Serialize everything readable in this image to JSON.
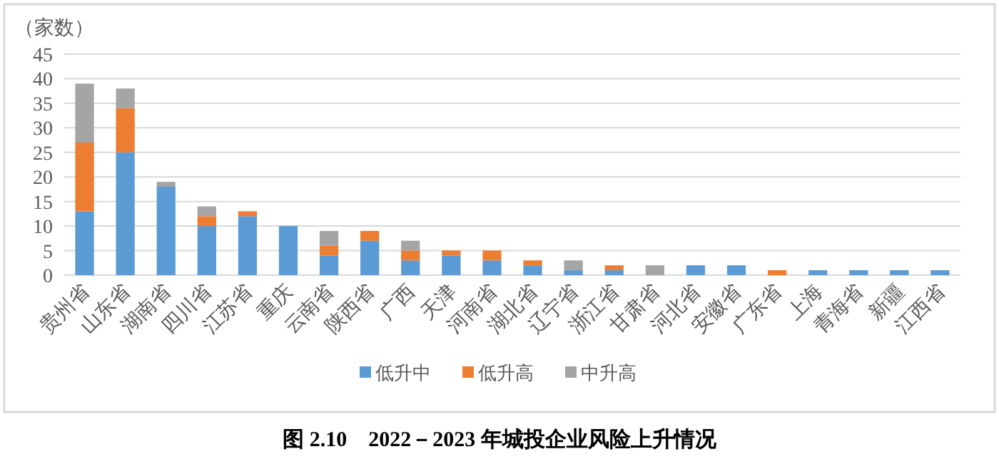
{
  "chart_data": {
    "type": "bar",
    "stacked": true,
    "title": "图 2.10　2022－2023 年城投企业风险上升情况",
    "ylabel": "（家数）",
    "categories": [
      "贵州省",
      "山东省",
      "湖南省",
      "四川省",
      "江苏省",
      "重庆",
      "云南省",
      "陕西省",
      "广西",
      "天津",
      "河南省",
      "湖北省",
      "辽宁省",
      "浙江省",
      "甘肃省",
      "河北省",
      "安徽省",
      "广东省",
      "上海",
      "青海省",
      "新疆",
      "江西省"
    ],
    "series": [
      {
        "name": "低升中",
        "color": "#5b9bd5",
        "values": [
          13,
          25,
          18,
          10,
          12,
          10,
          4,
          7,
          3,
          4,
          3,
          2,
          1,
          1,
          0,
          2,
          2,
          0,
          1,
          1,
          1,
          1
        ]
      },
      {
        "name": "低升高",
        "color": "#ed7d31",
        "values": [
          14,
          9,
          0,
          2,
          1,
          0,
          2,
          2,
          2,
          1,
          2,
          1,
          0,
          1,
          0,
          0,
          0,
          1,
          0,
          0,
          0,
          0
        ]
      },
      {
        "name": "中升高",
        "color": "#a5a5a5",
        "values": [
          12,
          4,
          1,
          2,
          0,
          0,
          3,
          0,
          2,
          0,
          0,
          0,
          2,
          0,
          2,
          0,
          0,
          0,
          0,
          0,
          0,
          0
        ]
      }
    ],
    "ylim": [
      0,
      45
    ],
    "yticks": [
      0,
      5,
      10,
      15,
      20,
      25,
      30,
      35,
      40,
      45
    ],
    "grid": "y",
    "legend": "bottom"
  }
}
